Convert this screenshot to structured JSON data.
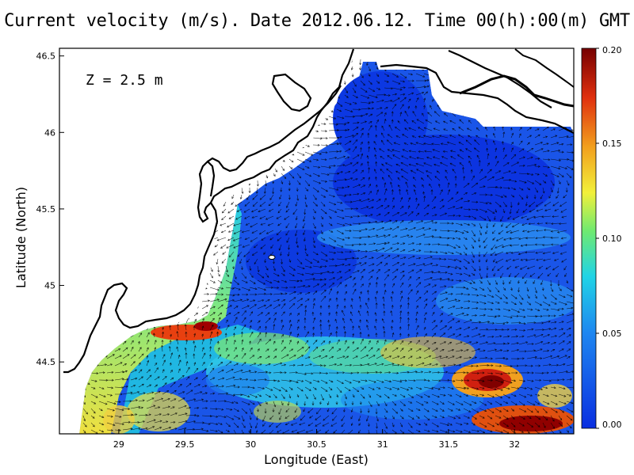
{
  "title": "Current velocity (m/s). Date 2012.06.12. Time 00(h):00(m) GMT",
  "depth_label": "Z = 2.5 m",
  "x_axis": {
    "label": "Longitude (East)",
    "ticks": [
      "29",
      "29.5",
      "30",
      "30.5",
      "31",
      "31.5",
      "32"
    ],
    "range": [
      28.55,
      32.45
    ]
  },
  "y_axis": {
    "label": "Latitude (North)",
    "ticks": [
      "44.5",
      "45",
      "45.5",
      "46",
      "46.5"
    ],
    "range": [
      44.03,
      46.55
    ]
  },
  "colorbar": {
    "ticks": [
      "0.00",
      "0.05",
      "0.10",
      "0.15",
      "0.20"
    ],
    "range": [
      0,
      0.2
    ],
    "colors": [
      "#0a30e0",
      "#1a7ff0",
      "#20d0e8",
      "#60e880",
      "#f0f040",
      "#f0a020",
      "#e03010",
      "#7a0000"
    ]
  },
  "colors": {
    "land": "#ffffff",
    "coastline": "#000000",
    "ocean_low": "#1040e0"
  }
}
